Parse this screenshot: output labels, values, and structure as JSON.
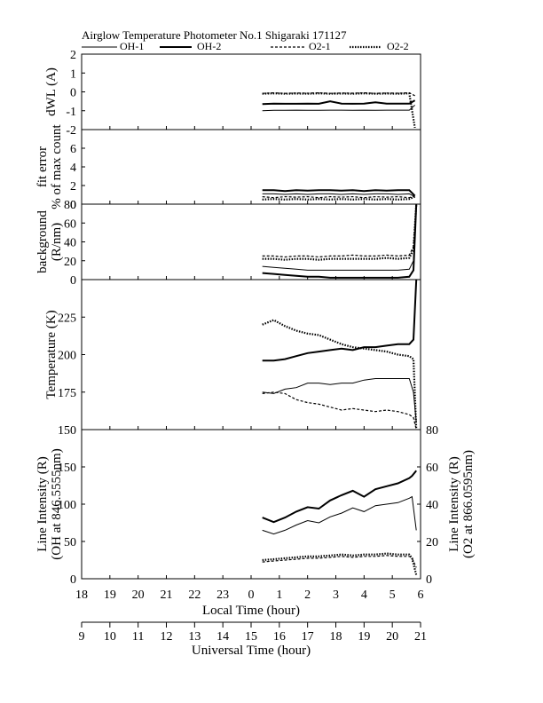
{
  "figure": {
    "title": "Airglow Temperature Photometer No.1  Shigaraki   171127",
    "legend": [
      {
        "name": "OH-1",
        "style": "solid-thin"
      },
      {
        "name": "OH-2",
        "style": "solid-thick"
      },
      {
        "name": "O2-1",
        "style": "dashed"
      },
      {
        "name": "O2-2",
        "style": "dotted"
      }
    ],
    "x_axes": {
      "local": {
        "label": "Local Time (hour)",
        "range": [
          18,
          30
        ],
        "ticks": [
          "18",
          "19",
          "20",
          "21",
          "22",
          "23",
          "0",
          "1",
          "2",
          "3",
          "4",
          "5",
          "6"
        ]
      },
      "universal": {
        "label": "Universal Time (hour)",
        "range": [
          9,
          21
        ],
        "ticks": [
          "9",
          "10",
          "11",
          "12",
          "13",
          "14",
          "15",
          "16",
          "17",
          "18",
          "19",
          "20",
          "21"
        ]
      }
    },
    "colors": {
      "lines": "#000000",
      "background": "#ffffff"
    }
  },
  "chart_data": [
    {
      "type": "line",
      "panel": "dWL",
      "ylabel": "dWL (A)",
      "ylim": [
        -2,
        2
      ],
      "yticks": [
        "2",
        "1",
        "0",
        "-1",
        "-2"
      ],
      "x": [
        24.4,
        24.8,
        25.2,
        25.6,
        26.0,
        26.4,
        26.8,
        27.2,
        27.6,
        28.0,
        28.4,
        28.8,
        29.2,
        29.6,
        29.8
      ],
      "series": [
        {
          "name": "OH-1",
          "values": [
            -1.0,
            -0.98,
            -0.98,
            -0.97,
            -0.98,
            -0.98,
            -0.97,
            -0.97,
            -0.98,
            -0.97,
            -0.98,
            -0.97,
            -0.97,
            -0.97,
            -0.7
          ]
        },
        {
          "name": "OH-2",
          "values": [
            -0.65,
            -0.62,
            -0.63,
            -0.63,
            -0.62,
            -0.63,
            -0.5,
            -0.62,
            -0.63,
            -0.62,
            -0.55,
            -0.62,
            -0.62,
            -0.62,
            -0.45
          ]
        },
        {
          "name": "O2-1",
          "values": [
            -0.08,
            -0.05,
            -0.08,
            -0.06,
            -0.07,
            -0.05,
            -0.08,
            -0.06,
            -0.07,
            -0.05,
            -0.08,
            -0.06,
            -0.07,
            -0.05,
            -0.2
          ]
        },
        {
          "name": "O2-2",
          "values": [
            -0.1,
            -0.08,
            -0.1,
            -0.09,
            -0.1,
            -0.08,
            -0.1,
            -0.09,
            -0.1,
            -0.08,
            -0.1,
            -0.09,
            -0.1,
            -0.08,
            -1.9
          ]
        }
      ]
    },
    {
      "type": "line",
      "panel": "fit error",
      "ylabel": "fit error",
      "ylabel2": "% of max count",
      "ylim": [
        0,
        8
      ],
      "yticks": [
        "6",
        "4",
        "2",
        "0"
      ],
      "x": [
        24.4,
        24.8,
        25.2,
        25.6,
        26.0,
        26.4,
        26.8,
        27.2,
        27.6,
        28.0,
        28.4,
        28.8,
        29.2,
        29.6,
        29.8
      ],
      "series": [
        {
          "name": "OH-1",
          "values": [
            1.1,
            1.1,
            1.05,
            1.1,
            1.05,
            1.1,
            1.1,
            1.05,
            1.1,
            1.05,
            1.1,
            1.1,
            1.05,
            1.1,
            0.8
          ]
        },
        {
          "name": "OH-2",
          "values": [
            1.5,
            1.5,
            1.4,
            1.5,
            1.45,
            1.5,
            1.5,
            1.45,
            1.5,
            1.4,
            1.5,
            1.45,
            1.5,
            1.5,
            0.9
          ]
        },
        {
          "name": "O2-1",
          "values": [
            0.8,
            0.7,
            0.8,
            0.75,
            0.8,
            0.7,
            0.8,
            0.75,
            0.8,
            0.7,
            0.8,
            0.75,
            0.8,
            0.7,
            0.9
          ]
        },
        {
          "name": "O2-2",
          "values": [
            0.5,
            0.55,
            0.5,
            0.55,
            0.5,
            0.55,
            0.5,
            0.55,
            0.5,
            0.55,
            0.5,
            0.55,
            0.5,
            0.55,
            0.8
          ]
        }
      ]
    },
    {
      "type": "line",
      "panel": "background",
      "ylabel": "background",
      "ylabel2": "(R/nm)",
      "ylim": [
        0,
        80
      ],
      "yticks": [
        "80",
        "60",
        "40",
        "20",
        "0"
      ],
      "x": [
        24.4,
        24.8,
        25.2,
        25.6,
        26.0,
        26.4,
        26.8,
        27.2,
        27.6,
        28.0,
        28.4,
        28.8,
        29.2,
        29.6,
        29.75,
        29.85
      ],
      "series": [
        {
          "name": "OH-1",
          "values": [
            14,
            13,
            12,
            11,
            10,
            10,
            10,
            10,
            10,
            10,
            10,
            10,
            10,
            11,
            20,
            80
          ]
        },
        {
          "name": "OH-2",
          "values": [
            7,
            6,
            5,
            4,
            3,
            3,
            2,
            2,
            2,
            2,
            2,
            2,
            2,
            3,
            10,
            80
          ]
        },
        {
          "name": "O2-1",
          "values": [
            25,
            25,
            24,
            25,
            25,
            24,
            25,
            25,
            26,
            25,
            25,
            26,
            25,
            26,
            35,
            80
          ]
        },
        {
          "name": "O2-2",
          "values": [
            22,
            22,
            21,
            22,
            22,
            21,
            22,
            22,
            22,
            22,
            22,
            23,
            22,
            23,
            32,
            80
          ]
        }
      ]
    },
    {
      "type": "line",
      "panel": "Temperature",
      "ylabel": "Temperature (K)",
      "ylim": [
        150,
        250
      ],
      "yticks": [
        "225",
        "200",
        "175",
        "150"
      ],
      "x": [
        24.4,
        24.8,
        25.2,
        25.6,
        26.0,
        26.4,
        26.8,
        27.2,
        27.6,
        28.0,
        28.4,
        28.8,
        29.2,
        29.6,
        29.75,
        29.85
      ],
      "series": [
        {
          "name": "OH-1",
          "values": [
            175,
            174,
            177,
            178,
            181,
            181,
            180,
            181,
            181,
            183,
            184,
            184,
            184,
            184,
            175,
            155
          ]
        },
        {
          "name": "OH-2",
          "values": [
            196,
            196,
            197,
            199,
            201,
            202,
            203,
            204,
            203,
            205,
            205,
            206,
            207,
            207,
            210,
            250
          ]
        },
        {
          "name": "O2-1",
          "values": [
            174,
            175,
            174,
            170,
            168,
            167,
            165,
            163,
            164,
            163,
            162,
            163,
            162,
            160,
            158,
            150
          ]
        },
        {
          "name": "O2-2",
          "values": [
            220,
            223,
            219,
            216,
            214,
            213,
            210,
            207,
            205,
            204,
            203,
            202,
            200,
            199,
            197,
            150
          ]
        }
      ]
    },
    {
      "type": "line",
      "panel": "Line Intensity",
      "ylabel": "Line Intensity (R)",
      "ylabel2": "(OH at 846.5555nm)",
      "ylim": [
        0,
        200
      ],
      "yticks": [
        "150",
        "100",
        "50",
        "0"
      ],
      "ylabel_right": "Line Intensity (R)",
      "ylabel_right2": "(O2 at 866.0595nm)",
      "ylim_right": [
        0,
        80
      ],
      "yticks_right": [
        "80",
        "60",
        "40",
        "20",
        "0"
      ],
      "x": [
        24.4,
        24.8,
        25.2,
        25.6,
        26.0,
        26.4,
        26.8,
        27.2,
        27.6,
        28.0,
        28.4,
        28.8,
        29.2,
        29.6,
        29.7,
        29.85
      ],
      "series": [
        {
          "name": "OH-1",
          "axis": "left",
          "values": [
            65,
            60,
            65,
            72,
            78,
            75,
            83,
            88,
            95,
            90,
            98,
            100,
            102,
            108,
            110,
            65
          ]
        },
        {
          "name": "OH-2",
          "axis": "left",
          "values": [
            82,
            76,
            82,
            90,
            96,
            94,
            105,
            112,
            118,
            110,
            120,
            124,
            128,
            135,
            138,
            145
          ]
        },
        {
          "name": "O2-1",
          "axis": "right",
          "values": [
            9,
            9.5,
            10,
            10.5,
            11,
            11,
            11.5,
            12,
            11.5,
            12,
            12,
            12.5,
            12,
            12,
            11,
            6
          ]
        },
        {
          "name": "O2-2",
          "axis": "right",
          "values": [
            10,
            10.5,
            11,
            11.5,
            12,
            12,
            12.5,
            13,
            12.5,
            13,
            13,
            13.5,
            13,
            13,
            11,
            2
          ]
        }
      ]
    }
  ]
}
